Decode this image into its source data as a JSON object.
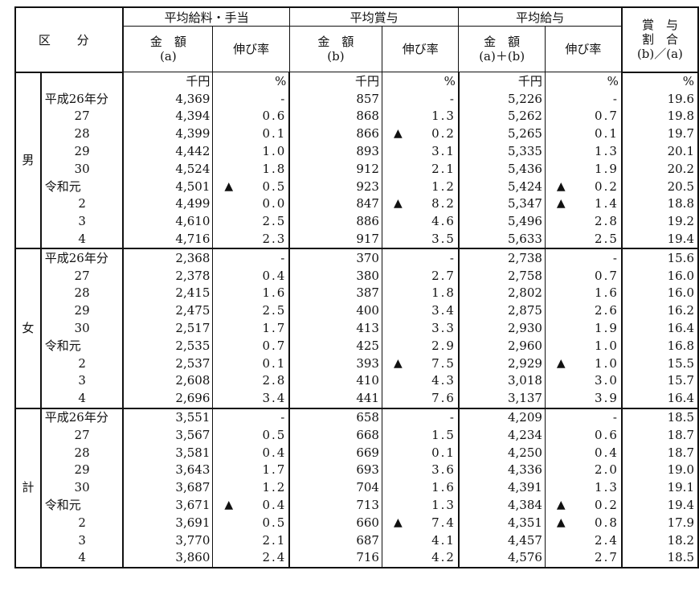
{
  "header": {
    "kubun": "区 分",
    "groups": [
      "平均給料・手当",
      "平均賞与",
      "平均給与"
    ],
    "ratio_header": [
      "賞　与",
      "割　合",
      "(b)／(a)"
    ],
    "subheaders": [
      {
        "line1": "金　額",
        "line2": "(a)"
      },
      {
        "line1": "伸び率",
        "line2": ""
      },
      {
        "line1": "金　額",
        "line2": "(b)"
      },
      {
        "line1": "伸び率",
        "line2": ""
      },
      {
        "line1": "金　額",
        "line2": "(a)＋(b)"
      },
      {
        "line1": "伸び率",
        "line2": ""
      }
    ],
    "units": [
      "千円",
      "%",
      "千円",
      "%",
      "千円",
      "%",
      "%"
    ]
  },
  "negative_marker": "▲",
  "sections": [
    {
      "label": "男",
      "rows": [
        {
          "year": "平成26年分",
          "a": "4,369",
          "a_rate": "-",
          "a_neg": false,
          "b": "857",
          "b_rate": "-",
          "b_neg": false,
          "ab": "5,226",
          "ab_rate": "-",
          "ab_neg": false,
          "ratio": "19.6"
        },
        {
          "year": "27",
          "a": "4,394",
          "a_rate": "0.6",
          "a_neg": false,
          "b": "868",
          "b_rate": "1.3",
          "b_neg": false,
          "ab": "5,262",
          "ab_rate": "0.7",
          "ab_neg": false,
          "ratio": "19.8"
        },
        {
          "year": "28",
          "a": "4,399",
          "a_rate": "0.1",
          "a_neg": false,
          "b": "866",
          "b_rate": "0.2",
          "b_neg": true,
          "ab": "5,265",
          "ab_rate": "0.1",
          "ab_neg": false,
          "ratio": "19.7"
        },
        {
          "year": "29",
          "a": "4,442",
          "a_rate": "1.0",
          "a_neg": false,
          "b": "893",
          "b_rate": "3.1",
          "b_neg": false,
          "ab": "5,335",
          "ab_rate": "1.3",
          "ab_neg": false,
          "ratio": "20.1"
        },
        {
          "year": "30",
          "a": "4,524",
          "a_rate": "1.8",
          "a_neg": false,
          "b": "912",
          "b_rate": "2.1",
          "b_neg": false,
          "ab": "5,436",
          "ab_rate": "1.9",
          "ab_neg": false,
          "ratio": "20.2"
        },
        {
          "year": "令和元",
          "a": "4,501",
          "a_rate": "0.5",
          "a_neg": true,
          "b": "923",
          "b_rate": "1.2",
          "b_neg": false,
          "ab": "5,424",
          "ab_rate": "0.2",
          "ab_neg": true,
          "ratio": "20.5"
        },
        {
          "year": "2",
          "a": "4,499",
          "a_rate": "0.0",
          "a_neg": false,
          "b": "847",
          "b_rate": "8.2",
          "b_neg": true,
          "ab": "5,347",
          "ab_rate": "1.4",
          "ab_neg": true,
          "ratio": "18.8"
        },
        {
          "year": "3",
          "a": "4,610",
          "a_rate": "2.5",
          "a_neg": false,
          "b": "886",
          "b_rate": "4.6",
          "b_neg": false,
          "ab": "5,496",
          "ab_rate": "2.8",
          "ab_neg": false,
          "ratio": "19.2"
        },
        {
          "year": "4",
          "a": "4,716",
          "a_rate": "2.3",
          "a_neg": false,
          "b": "917",
          "b_rate": "3.5",
          "b_neg": false,
          "ab": "5,633",
          "ab_rate": "2.5",
          "ab_neg": false,
          "ratio": "19.4"
        }
      ]
    },
    {
      "label": "女",
      "rows": [
        {
          "year": "平成26年分",
          "a": "2,368",
          "a_rate": "-",
          "a_neg": false,
          "b": "370",
          "b_rate": "-",
          "b_neg": false,
          "ab": "2,738",
          "ab_rate": "-",
          "ab_neg": false,
          "ratio": "15.6"
        },
        {
          "year": "27",
          "a": "2,378",
          "a_rate": "0.4",
          "a_neg": false,
          "b": "380",
          "b_rate": "2.7",
          "b_neg": false,
          "ab": "2,758",
          "ab_rate": "0.7",
          "ab_neg": false,
          "ratio": "16.0"
        },
        {
          "year": "28",
          "a": "2,415",
          "a_rate": "1.6",
          "a_neg": false,
          "b": "387",
          "b_rate": "1.8",
          "b_neg": false,
          "ab": "2,802",
          "ab_rate": "1.6",
          "ab_neg": false,
          "ratio": "16.0"
        },
        {
          "year": "29",
          "a": "2,475",
          "a_rate": "2.5",
          "a_neg": false,
          "b": "400",
          "b_rate": "3.4",
          "b_neg": false,
          "ab": "2,875",
          "ab_rate": "2.6",
          "ab_neg": false,
          "ratio": "16.2"
        },
        {
          "year": "30",
          "a": "2,517",
          "a_rate": "1.7",
          "a_neg": false,
          "b": "413",
          "b_rate": "3.3",
          "b_neg": false,
          "ab": "2,930",
          "ab_rate": "1.9",
          "ab_neg": false,
          "ratio": "16.4"
        },
        {
          "year": "令和元",
          "a": "2,535",
          "a_rate": "0.7",
          "a_neg": false,
          "b": "425",
          "b_rate": "2.9",
          "b_neg": false,
          "ab": "2,960",
          "ab_rate": "1.0",
          "ab_neg": false,
          "ratio": "16.8"
        },
        {
          "year": "2",
          "a": "2,537",
          "a_rate": "0.1",
          "a_neg": false,
          "b": "393",
          "b_rate": "7.5",
          "b_neg": true,
          "ab": "2,929",
          "ab_rate": "1.0",
          "ab_neg": true,
          "ratio": "15.5"
        },
        {
          "year": "3",
          "a": "2,608",
          "a_rate": "2.8",
          "a_neg": false,
          "b": "410",
          "b_rate": "4.3",
          "b_neg": false,
          "ab": "3,018",
          "ab_rate": "3.0",
          "ab_neg": false,
          "ratio": "15.7"
        },
        {
          "year": "4",
          "a": "2,696",
          "a_rate": "3.4",
          "a_neg": false,
          "b": "441",
          "b_rate": "7.6",
          "b_neg": false,
          "ab": "3,137",
          "ab_rate": "3.9",
          "ab_neg": false,
          "ratio": "16.4"
        }
      ]
    },
    {
      "label": "計",
      "rows": [
        {
          "year": "平成26年分",
          "a": "3,551",
          "a_rate": "-",
          "a_neg": false,
          "b": "658",
          "b_rate": "-",
          "b_neg": false,
          "ab": "4,209",
          "ab_rate": "-",
          "ab_neg": false,
          "ratio": "18.5"
        },
        {
          "year": "27",
          "a": "3,567",
          "a_rate": "0.5",
          "a_neg": false,
          "b": "668",
          "b_rate": "1.5",
          "b_neg": false,
          "ab": "4,234",
          "ab_rate": "0.6",
          "ab_neg": false,
          "ratio": "18.7"
        },
        {
          "year": "28",
          "a": "3,581",
          "a_rate": "0.4",
          "a_neg": false,
          "b": "669",
          "b_rate": "0.1",
          "b_neg": false,
          "ab": "4,250",
          "ab_rate": "0.4",
          "ab_neg": false,
          "ratio": "18.7"
        },
        {
          "year": "29",
          "a": "3,643",
          "a_rate": "1.7",
          "a_neg": false,
          "b": "693",
          "b_rate": "3.6",
          "b_neg": false,
          "ab": "4,336",
          "ab_rate": "2.0",
          "ab_neg": false,
          "ratio": "19.0"
        },
        {
          "year": "30",
          "a": "3,687",
          "a_rate": "1.2",
          "a_neg": false,
          "b": "704",
          "b_rate": "1.6",
          "b_neg": false,
          "ab": "4,391",
          "ab_rate": "1.3",
          "ab_neg": false,
          "ratio": "19.1"
        },
        {
          "year": "令和元",
          "a": "3,671",
          "a_rate": "0.4",
          "a_neg": true,
          "b": "713",
          "b_rate": "1.3",
          "b_neg": false,
          "ab": "4,384",
          "ab_rate": "0.2",
          "ab_neg": true,
          "ratio": "19.4"
        },
        {
          "year": "2",
          "a": "3,691",
          "a_rate": "0.5",
          "a_neg": false,
          "b": "660",
          "b_rate": "7.4",
          "b_neg": true,
          "ab": "4,351",
          "ab_rate": "0.8",
          "ab_neg": true,
          "ratio": "17.9"
        },
        {
          "year": "3",
          "a": "3,770",
          "a_rate": "2.1",
          "a_neg": false,
          "b": "687",
          "b_rate": "4.1",
          "b_neg": false,
          "ab": "4,457",
          "ab_rate": "2.4",
          "ab_neg": false,
          "ratio": "18.2"
        },
        {
          "year": "4",
          "a": "3,860",
          "a_rate": "2.4",
          "a_neg": false,
          "b": "716",
          "b_rate": "4.2",
          "b_neg": false,
          "ab": "4,576",
          "ab_rate": "2.7",
          "ab_neg": false,
          "ratio": "18.5"
        }
      ]
    }
  ]
}
